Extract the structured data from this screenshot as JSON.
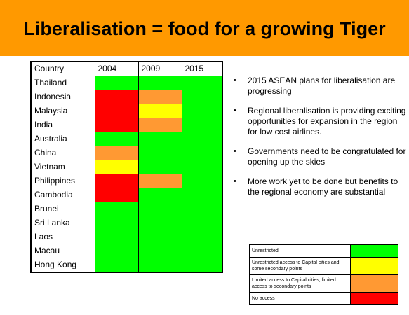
{
  "title": "Liberalisation = food for a growing Tiger",
  "colors": {
    "banner": "#ff9900",
    "unrestricted": "#00ff00",
    "capital_secondary": "#ffff00",
    "limited": "#ff9933",
    "no_access": "#ff0000"
  },
  "table": {
    "headers": [
      "Country",
      "2004",
      "2009",
      "2015"
    ],
    "rows": [
      {
        "country": "Thailand",
        "status": [
          "unrestricted",
          "unrestricted",
          "unrestricted"
        ]
      },
      {
        "country": "Indonesia",
        "status": [
          "no_access",
          "limited",
          "unrestricted"
        ]
      },
      {
        "country": "Malaysia",
        "status": [
          "no_access",
          "capital_secondary",
          "unrestricted"
        ]
      },
      {
        "country": "India",
        "status": [
          "no_access",
          "limited",
          "unrestricted"
        ]
      },
      {
        "country": "Australia",
        "status": [
          "unrestricted",
          "unrestricted",
          "unrestricted"
        ]
      },
      {
        "country": "China",
        "status": [
          "limited",
          "unrestricted",
          "unrestricted"
        ]
      },
      {
        "country": "Vietnam",
        "status": [
          "capital_secondary",
          "unrestricted",
          "unrestricted"
        ]
      },
      {
        "country": "Philippines",
        "status": [
          "no_access",
          "limited",
          "unrestricted"
        ]
      },
      {
        "country": "Cambodia",
        "status": [
          "no_access",
          "unrestricted",
          "unrestricted"
        ]
      },
      {
        "country": "Brunei",
        "status": [
          "unrestricted",
          "unrestricted",
          "unrestricted"
        ]
      },
      {
        "country": "Sri Lanka",
        "status": [
          "unrestricted",
          "unrestricted",
          "unrestricted"
        ]
      },
      {
        "country": "Laos",
        "status": [
          "unrestricted",
          "unrestricted",
          "unrestricted"
        ]
      },
      {
        "country": "Macau",
        "status": [
          "unrestricted",
          "unrestricted",
          "unrestricted"
        ]
      },
      {
        "country": "Hong Kong",
        "status": [
          "unrestricted",
          "unrestricted",
          "unrestricted"
        ]
      }
    ]
  },
  "bullets": [
    "2015 ASEAN plans for liberalisation are progressing",
    "Regional liberalisation is providing exciting  opportunities for expansion in the region for low cost airlines.",
    "Governments need to be congratulated for opening up the skies",
    "More work yet to be done but benefits to the regional economy are substantial"
  ],
  "bullet_glyph": "•",
  "legend": [
    {
      "label": "Unrestricted",
      "color_key": "unrestricted"
    },
    {
      "label": "Unrestricted access to Capital cities and some secondary points",
      "color_key": "capital_secondary"
    },
    {
      "label": "Limited access to Capital cities, limited access to secondary points",
      "color_key": "limited"
    },
    {
      "label": "No access",
      "color_key": "no_access"
    }
  ]
}
